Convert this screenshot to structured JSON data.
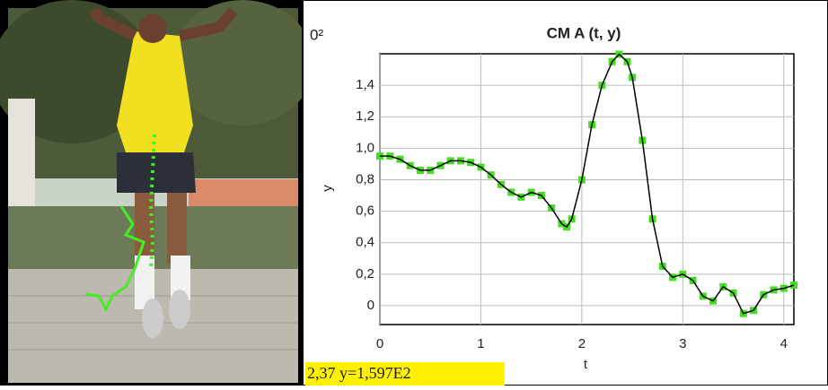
{
  "chart_data": {
    "type": "line",
    "title": "CM A (t, y)",
    "x_label": "t",
    "y_label": "y",
    "y_multiplier": "0²",
    "status_text": "2,37  y=1,597E2",
    "x": [
      0,
      0.1,
      0.2,
      0.3,
      0.4,
      0.5,
      0.6,
      0.7,
      0.8,
      0.9,
      1.0,
      1.1,
      1.2,
      1.3,
      1.4,
      1.5,
      1.6,
      1.7,
      1.8,
      1.85,
      1.9,
      2.0,
      2.1,
      2.2,
      2.3,
      2.37,
      2.45,
      2.5,
      2.6,
      2.7,
      2.8,
      2.9,
      3.0,
      3.1,
      3.2,
      3.3,
      3.4,
      3.5,
      3.6,
      3.7,
      3.8,
      3.9,
      4.0,
      4.1
    ],
    "values": [
      0.95,
      0.95,
      0.93,
      0.89,
      0.86,
      0.86,
      0.89,
      0.92,
      0.92,
      0.91,
      0.88,
      0.83,
      0.77,
      0.72,
      0.69,
      0.72,
      0.7,
      0.62,
      0.52,
      0.5,
      0.55,
      0.8,
      1.15,
      1.4,
      1.55,
      1.597,
      1.55,
      1.45,
      1.05,
      0.55,
      0.25,
      0.18,
      0.2,
      0.16,
      0.06,
      0.03,
      0.12,
      0.08,
      -0.05,
      -0.03,
      0.07,
      0.1,
      0.11,
      0.13
    ],
    "line_color": "#000000",
    "marker_color": "#44dd22",
    "xlim": [
      0,
      4.1
    ],
    "ylim": [
      -0.12,
      1.6
    ],
    "xticks": [
      0,
      1,
      2,
      3,
      4
    ],
    "yticks": [
      0,
      {
        "value": 0.2,
        "label": "0,2"
      },
      {
        "value": 0.4,
        "label": "0,4"
      },
      {
        "value": 0.6,
        "label": "0,6"
      },
      {
        "value": 0.8,
        "label": "0,8"
      },
      {
        "value": 1.0,
        "label": "1,0"
      },
      {
        "value": 1.2,
        "label": "1,2"
      },
      {
        "value": 1.4,
        "label": "1,4"
      }
    ],
    "grid": true
  }
}
